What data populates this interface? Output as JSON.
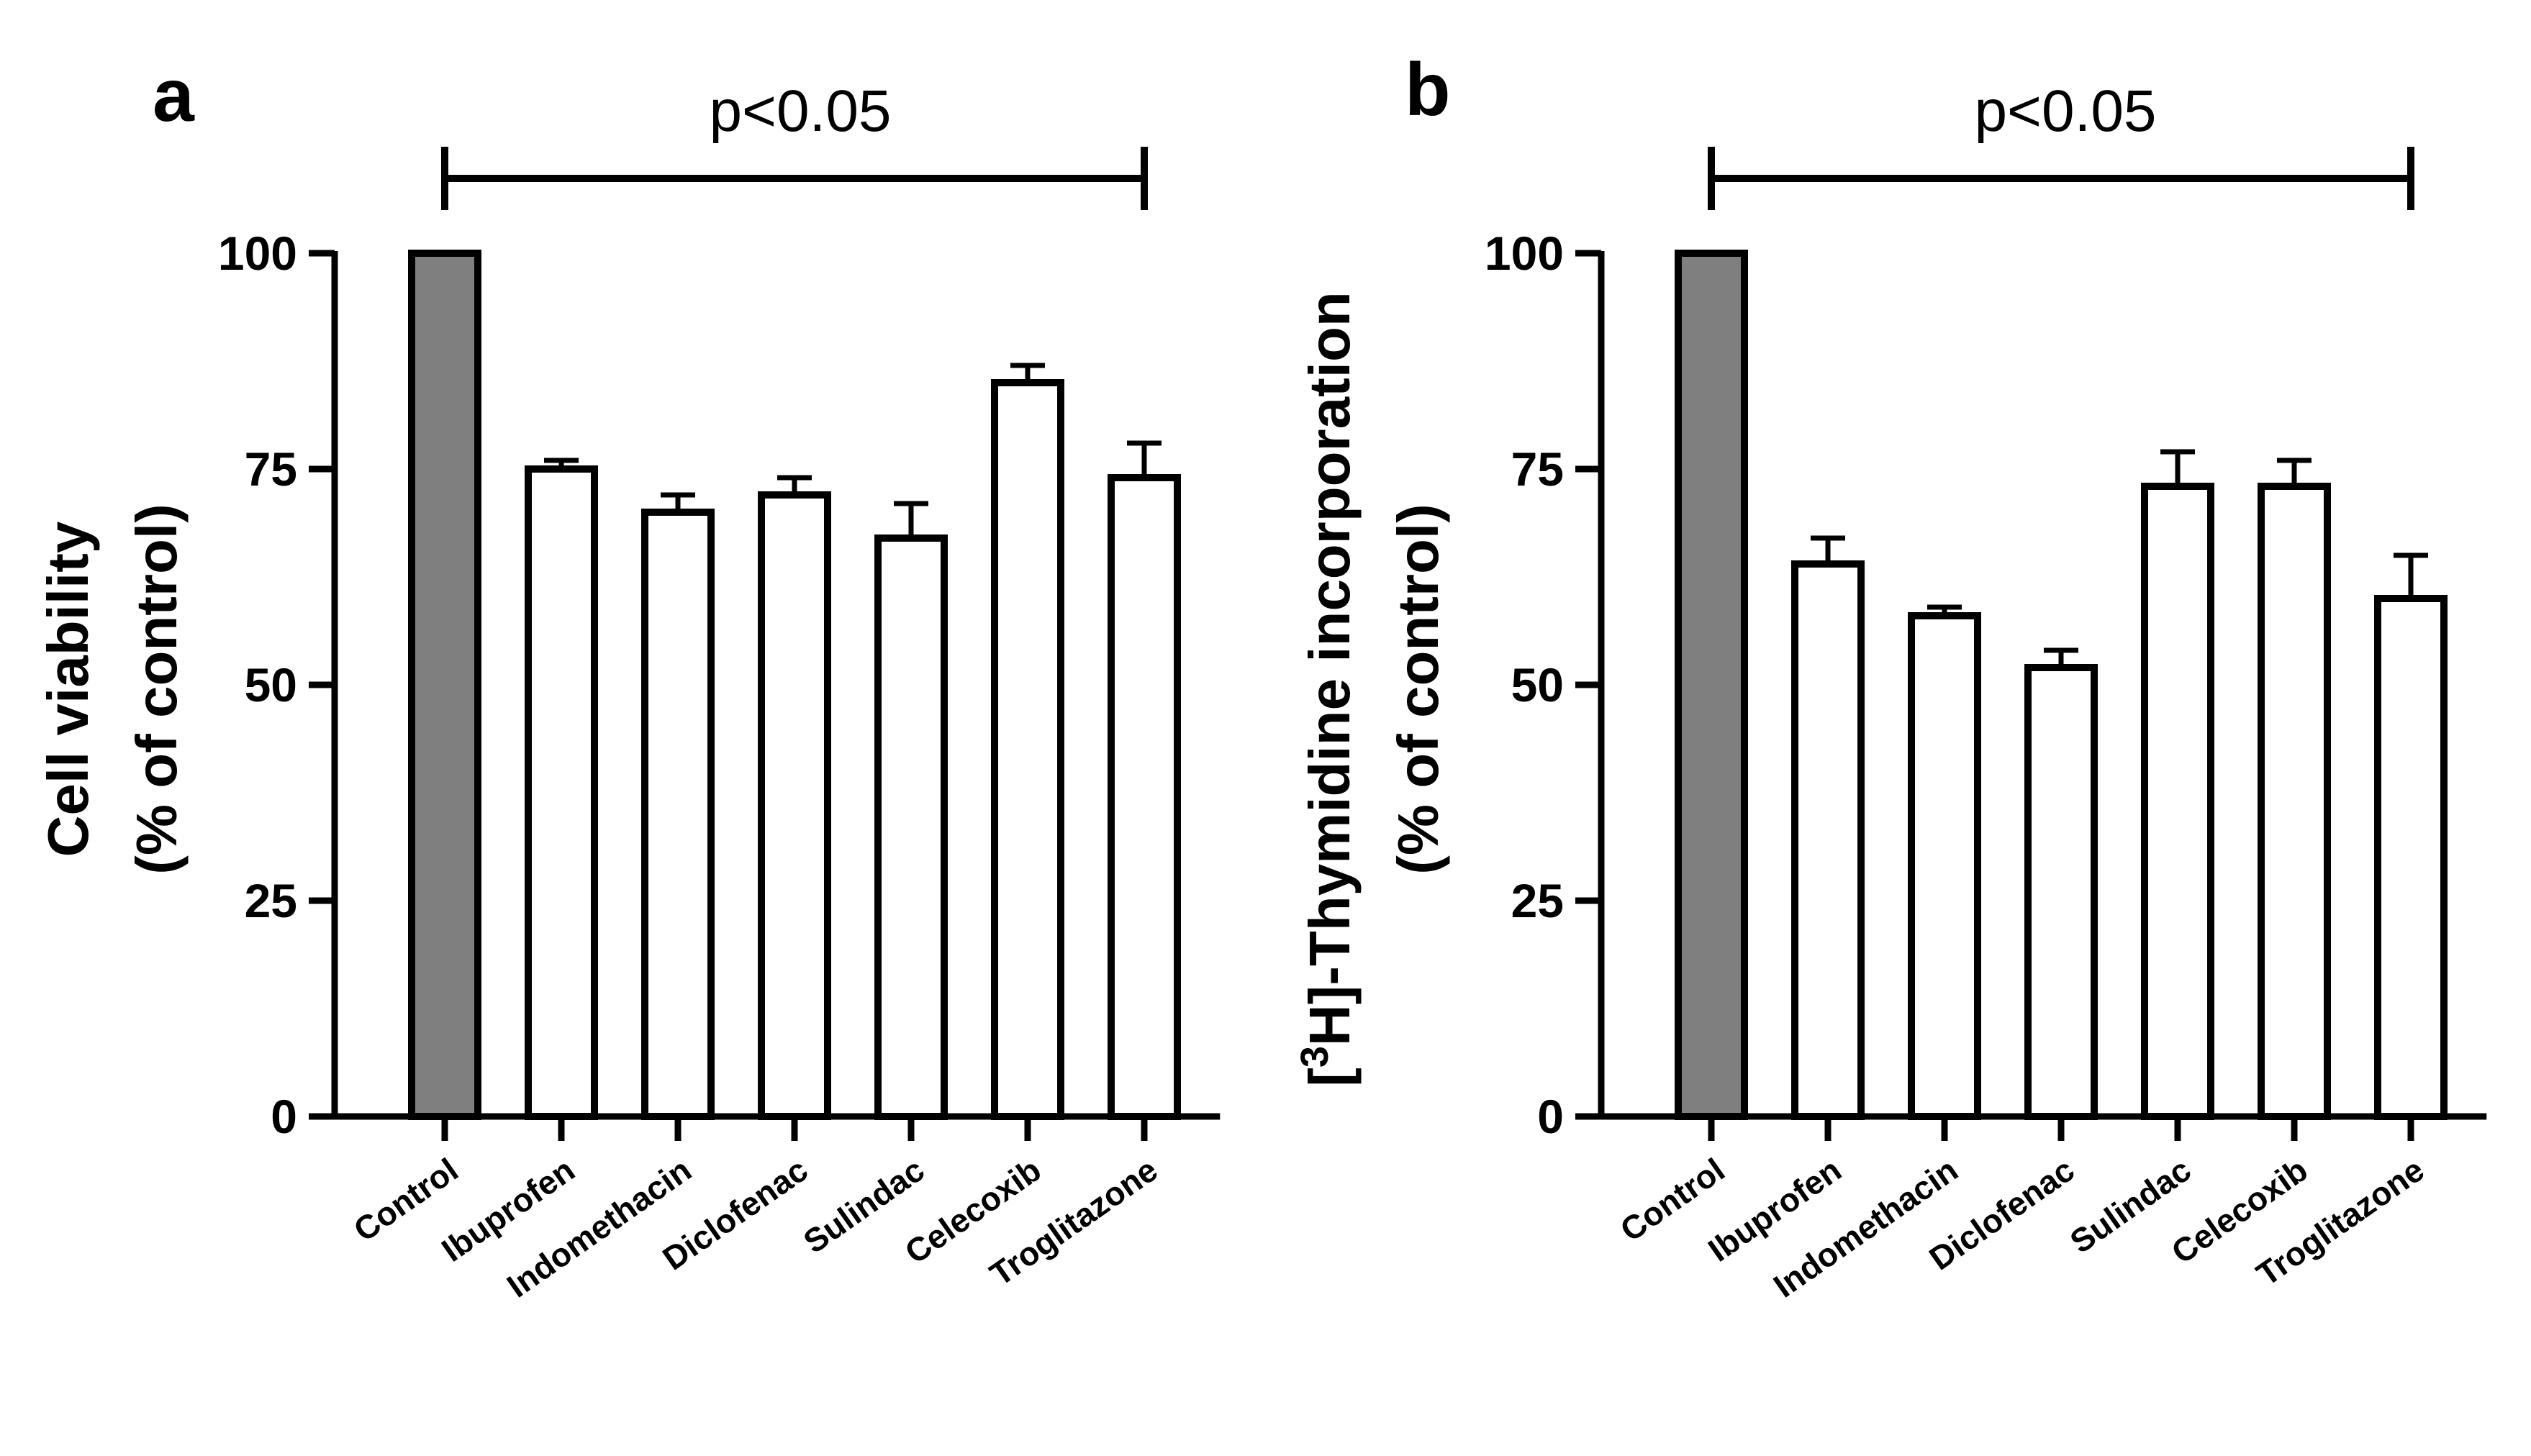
{
  "chart_data": [
    {
      "type": "bar",
      "panel": "a",
      "categories": [
        "Control",
        "Ibuprofen",
        "Indomethacin",
        "Diclofenac",
        "Sulindac",
        "Celecoxib",
        "Troglitazone"
      ],
      "values": [
        100,
        75,
        70,
        72,
        67,
        85,
        74
      ],
      "errors": [
        0,
        1,
        2,
        2,
        4,
        2,
        4
      ],
      "bar_fills": [
        "#7f7f7f",
        "#ffffff",
        "#ffffff",
        "#ffffff",
        "#ffffff",
        "#ffffff",
        "#ffffff"
      ],
      "ylabel_line1": "Cell viability",
      "ylabel_line2": "(% of control)",
      "ylim": [
        0,
        100
      ],
      "yticks": [
        0,
        25,
        50,
        75,
        100
      ],
      "significance": {
        "text": "p<0.05",
        "from": "Control",
        "to": "Troglitazone"
      }
    },
    {
      "type": "bar",
      "panel": "b",
      "categories": [
        "Control",
        "Ibuprofen",
        "Indomethacin",
        "Diclofenac",
        "Sulindac",
        "Celecoxib",
        "Troglitazone"
      ],
      "values": [
        100,
        64,
        58,
        52,
        73,
        73,
        60
      ],
      "errors": [
        0,
        3,
        1,
        2,
        4,
        3,
        5
      ],
      "bar_fills": [
        "#7f7f7f",
        "#ffffff",
        "#ffffff",
        "#ffffff",
        "#ffffff",
        "#ffffff",
        "#ffffff"
      ],
      "ylabel_line1_pre": "[",
      "ylabel_line1_sup": "3",
      "ylabel_line1_post": "H]-Thymidine incorporation",
      "ylabel_line2": "(% of control)",
      "ylim": [
        0,
        100
      ],
      "yticks": [
        0,
        25,
        50,
        75,
        100
      ],
      "significance": {
        "text": "p<0.05",
        "from": "Control",
        "to": "Troglitazone"
      }
    }
  ]
}
